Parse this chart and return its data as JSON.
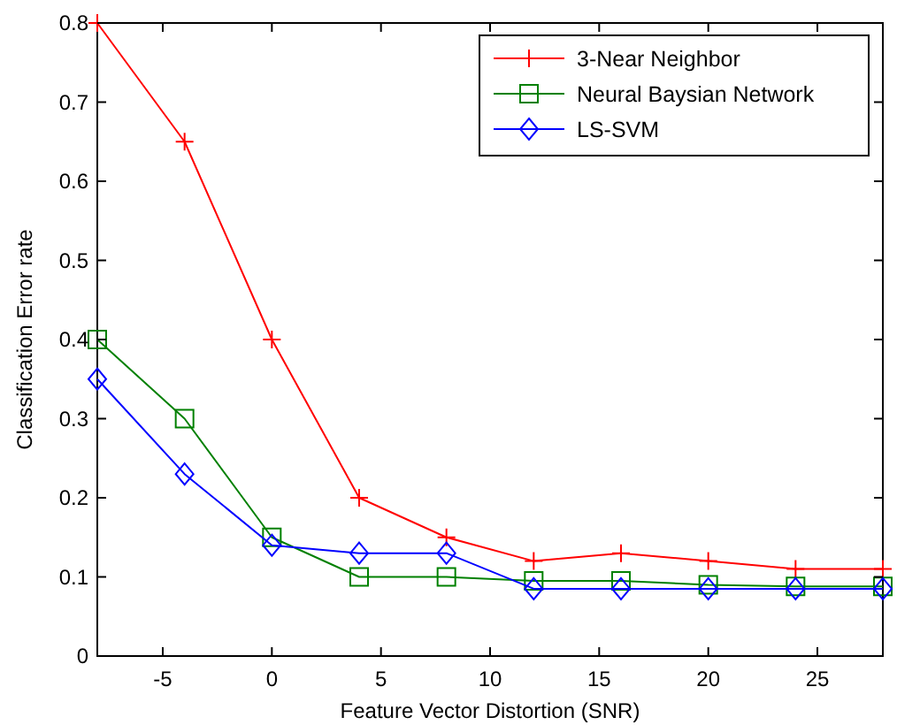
{
  "chart_data": {
    "type": "line",
    "xlabel": "Feature Vector Distortion (SNR)",
    "ylabel": "Classification Error rate",
    "x": [
      -8,
      -4,
      0,
      4,
      8,
      12,
      16,
      20,
      24,
      28
    ],
    "series": [
      {
        "name": "3-Near Neighbor",
        "color": "#ff0000",
        "marker": "cross",
        "values": [
          0.8,
          0.65,
          0.4,
          0.2,
          0.15,
          0.12,
          0.13,
          0.12,
          0.11,
          0.11
        ]
      },
      {
        "name": "Neural Baysian Network",
        "color": "#008000",
        "marker": "square",
        "values": [
          0.4,
          0.3,
          0.15,
          0.1,
          0.1,
          0.095,
          0.095,
          0.09,
          0.088,
          0.088
        ]
      },
      {
        "name": "LS-SVM",
        "color": "#0000ff",
        "marker": "diamond",
        "values": [
          0.35,
          0.23,
          0.14,
          0.13,
          0.13,
          0.085,
          0.085,
          0.085,
          0.085,
          0.085
        ]
      }
    ],
    "xlim": [
      -8,
      28
    ],
    "xticks": [
      -5,
      0,
      5,
      10,
      15,
      20,
      25
    ],
    "ylim": [
      0,
      0.8
    ],
    "yticks": [
      0,
      0.1,
      0.2,
      0.3,
      0.4,
      0.5,
      0.6,
      0.7,
      0.8
    ],
    "grid": false,
    "legend": "top right",
    "line_style": "solid"
  }
}
